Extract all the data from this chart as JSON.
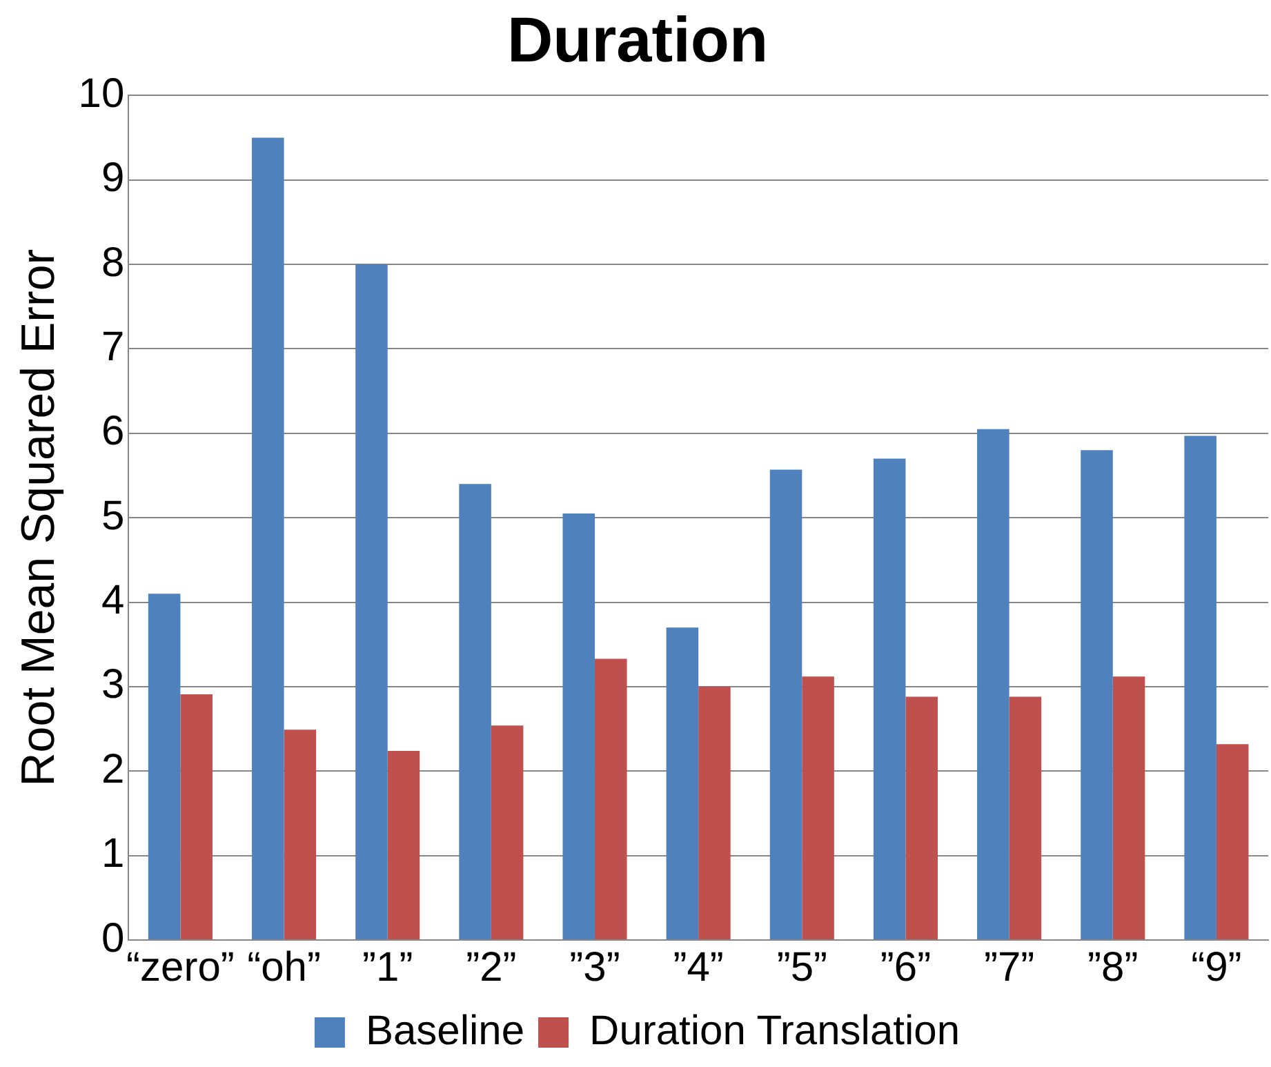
{
  "chart_data": {
    "type": "bar",
    "title": "Duration",
    "ylabel": "Root Mean Squared Error",
    "categories": [
      "“zero”",
      "“oh”",
      "”1”",
      "”2”",
      "”3”",
      "”4”",
      "”5”",
      "”6”",
      "”7”",
      "”8”",
      "“9”"
    ],
    "series": [
      {
        "name": "Baseline",
        "color": "#4f81bd",
        "values": [
          4.1,
          9.5,
          8.0,
          5.4,
          5.05,
          3.7,
          5.57,
          5.7,
          6.05,
          5.8,
          5.97
        ]
      },
      {
        "name": "Duration Translation",
        "color": "#c0504d",
        "values": [
          2.91,
          2.49,
          2.24,
          2.54,
          3.33,
          3.0,
          3.12,
          2.88,
          2.88,
          3.12,
          2.32
        ]
      }
    ],
    "ylim": [
      0,
      10
    ],
    "yticks": [
      0,
      1,
      2,
      3,
      4,
      5,
      6,
      7,
      8,
      9,
      10
    ],
    "grid": "y",
    "legend": "bottom"
  }
}
